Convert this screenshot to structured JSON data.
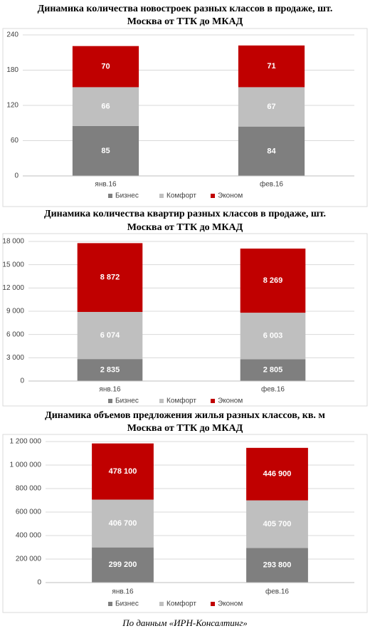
{
  "chart_data": [
    {
      "type": "stacked_bar",
      "title": "Динамика количества новостроек разных классов в продаже, шт.",
      "subtitle": "Москва от ТТК до МКАД",
      "categories": [
        "янв.16",
        "фев.16"
      ],
      "series": [
        {
          "name": "Бизнес",
          "color": "#7f7f7f",
          "values": [
            85,
            84
          ]
        },
        {
          "name": "Комфорт",
          "color": "#bfbfbf",
          "values": [
            66,
            67
          ]
        },
        {
          "name": "Эконом",
          "color": "#c00000",
          "values": [
            70,
            71
          ]
        }
      ],
      "ylim": [
        0,
        240
      ],
      "yticks": [
        0,
        60,
        120,
        180,
        240
      ],
      "grid": true,
      "legend": "bottom"
    },
    {
      "type": "stacked_bar",
      "title": "Динамика количества квартир разных классов в продаже, шт.",
      "subtitle": "Москва от ТТК до МКАД",
      "categories": [
        "янв.16",
        "фев.16"
      ],
      "series": [
        {
          "name": "Бизнес",
          "color": "#7f7f7f",
          "values": [
            2835,
            2805
          ],
          "value_labels": [
            "2 835",
            "2 805"
          ]
        },
        {
          "name": "Комфорт",
          "color": "#bfbfbf",
          "values": [
            6074,
            6003
          ],
          "value_labels": [
            "6 074",
            "6 003"
          ]
        },
        {
          "name": "Эконом",
          "color": "#c00000",
          "values": [
            8872,
            8269
          ],
          "value_labels": [
            "8 872",
            "8 269"
          ]
        }
      ],
      "ylim": [
        0,
        18000
      ],
      "yticks": [
        0,
        {
          "value": 3000,
          "label": "3 000"
        },
        {
          "value": 6000,
          "label": "6 000"
        },
        {
          "value": 9000,
          "label": "9 000"
        },
        {
          "value": 12000,
          "label": "12 000"
        },
        {
          "value": 15000,
          "label": "15 000"
        },
        {
          "value": 18000,
          "label": "18 000"
        }
      ],
      "grid": true,
      "legend": "bottom"
    },
    {
      "type": "stacked_bar",
      "title": "Динамика объемов предложения жилья разных классов, кв. м",
      "subtitle": "Москва от ТТК до МКАД",
      "categories": [
        "янв.16",
        "фев.16"
      ],
      "series": [
        {
          "name": "Бизнес",
          "color": "#7f7f7f",
          "values": [
            299200,
            293800
          ],
          "value_labels": [
            "299 200",
            "293 800"
          ]
        },
        {
          "name": "Комфорт",
          "color": "#bfbfbf",
          "values": [
            406700,
            405700
          ],
          "value_labels": [
            "406 700",
            "405 700"
          ]
        },
        {
          "name": "Эконом",
          "color": "#c00000",
          "values": [
            478100,
            446900
          ],
          "value_labels": [
            "478 100",
            "446 900"
          ]
        }
      ],
      "ylim": [
        0,
        1200000
      ],
      "yticks": [
        0,
        {
          "value": 200000,
          "label": "200 000"
        },
        {
          "value": 400000,
          "label": "400 000"
        },
        {
          "value": 600000,
          "label": "600 000"
        },
        {
          "value": 800000,
          "label": "800 000"
        },
        {
          "value": 1000000,
          "label": "1 000 000"
        },
        {
          "value": 1200000,
          "label": "1 200 000"
        }
      ],
      "grid": true,
      "legend": "bottom"
    }
  ],
  "source": "По данным «ИРН-Консалтинг»"
}
